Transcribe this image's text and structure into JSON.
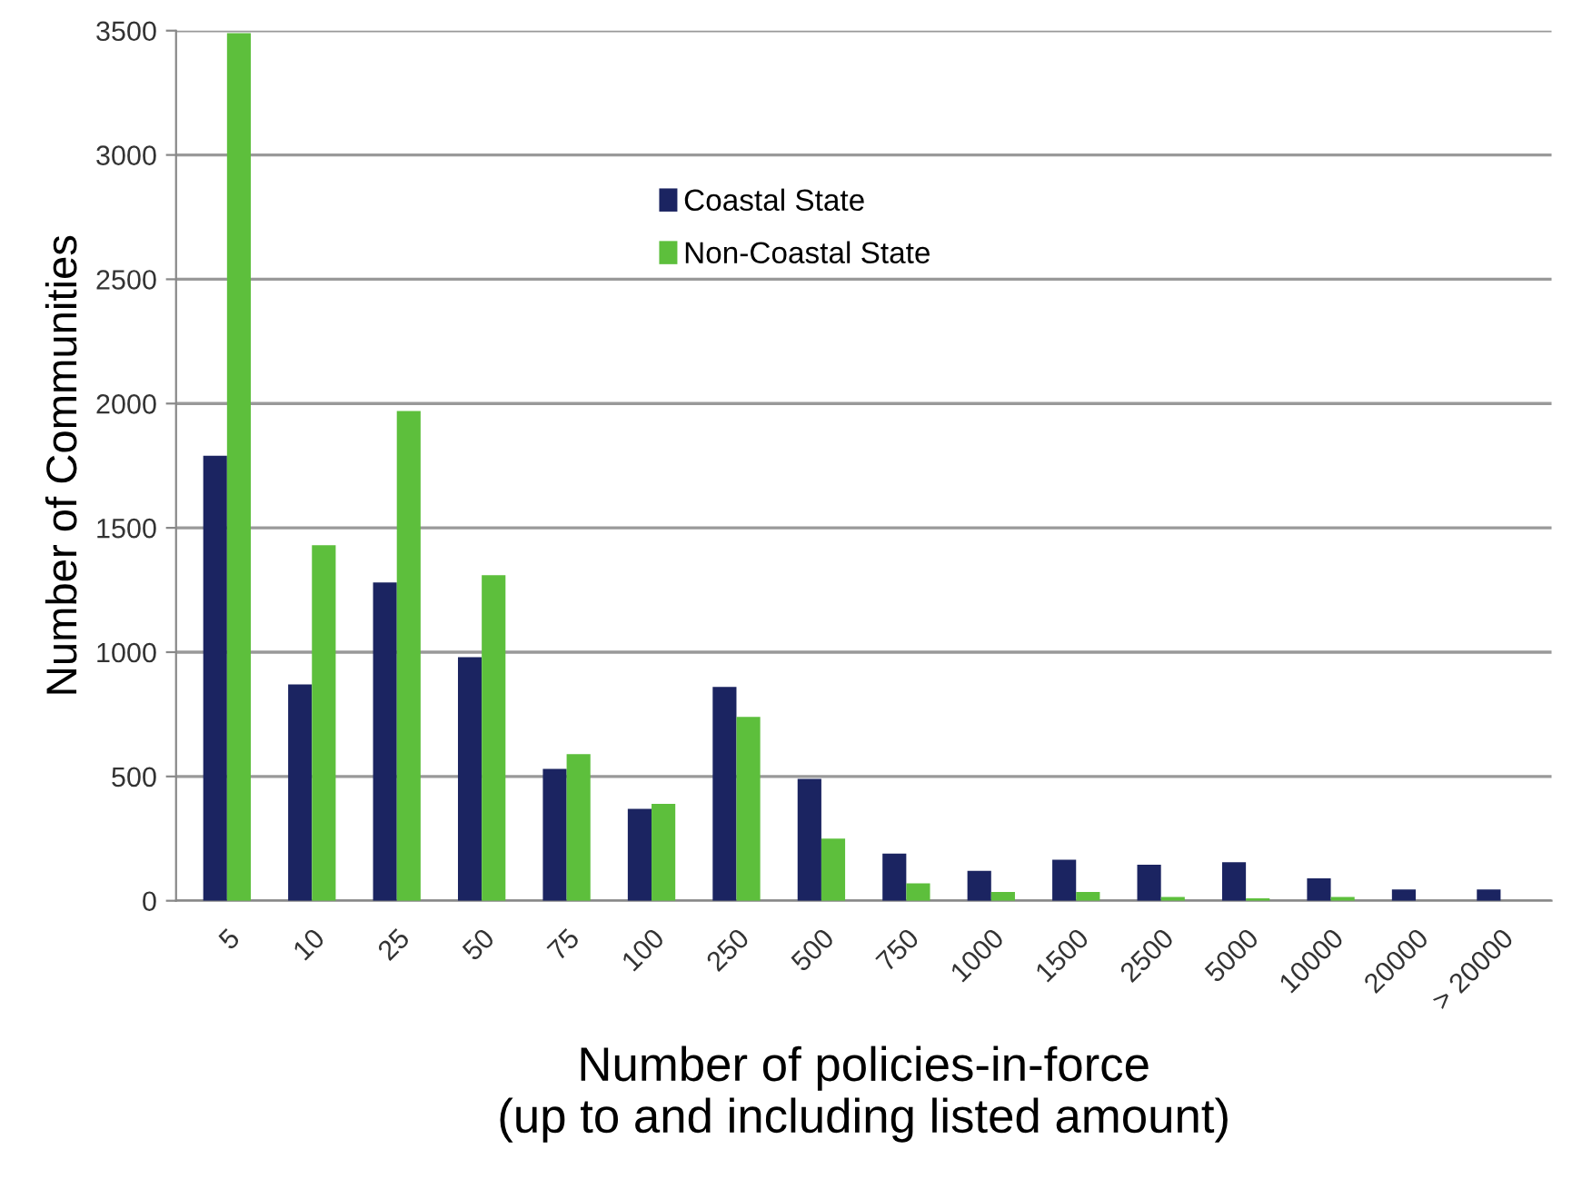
{
  "chart_data": {
    "type": "bar",
    "xlabel": "Number of policies-in-force\n(up to and including listed amount)",
    "ylabel": "Number of Communities",
    "categories": [
      "5",
      "10",
      "25",
      "50",
      "75",
      "100",
      "250",
      "500",
      "750",
      "1000",
      "1500",
      "2500",
      "5000",
      "10000",
      "20000",
      "> 20000"
    ],
    "series": [
      {
        "name": "Coastal State",
        "color": "#1b2461",
        "values": [
          1790,
          870,
          1280,
          980,
          530,
          370,
          860,
          490,
          190,
          120,
          165,
          145,
          155,
          90,
          45,
          45
        ]
      },
      {
        "name": "Non-Coastal State",
        "color": "#5dbf3c",
        "values": [
          3490,
          1430,
          1970,
          1310,
          590,
          390,
          740,
          250,
          70,
          35,
          35,
          15,
          10,
          15,
          0,
          0
        ]
      }
    ],
    "ylim": [
      0,
      3500
    ],
    "yticks": [
      0,
      500,
      1000,
      1500,
      2000,
      2500,
      3000,
      3500
    ],
    "grid": "y",
    "legend": "top"
  }
}
